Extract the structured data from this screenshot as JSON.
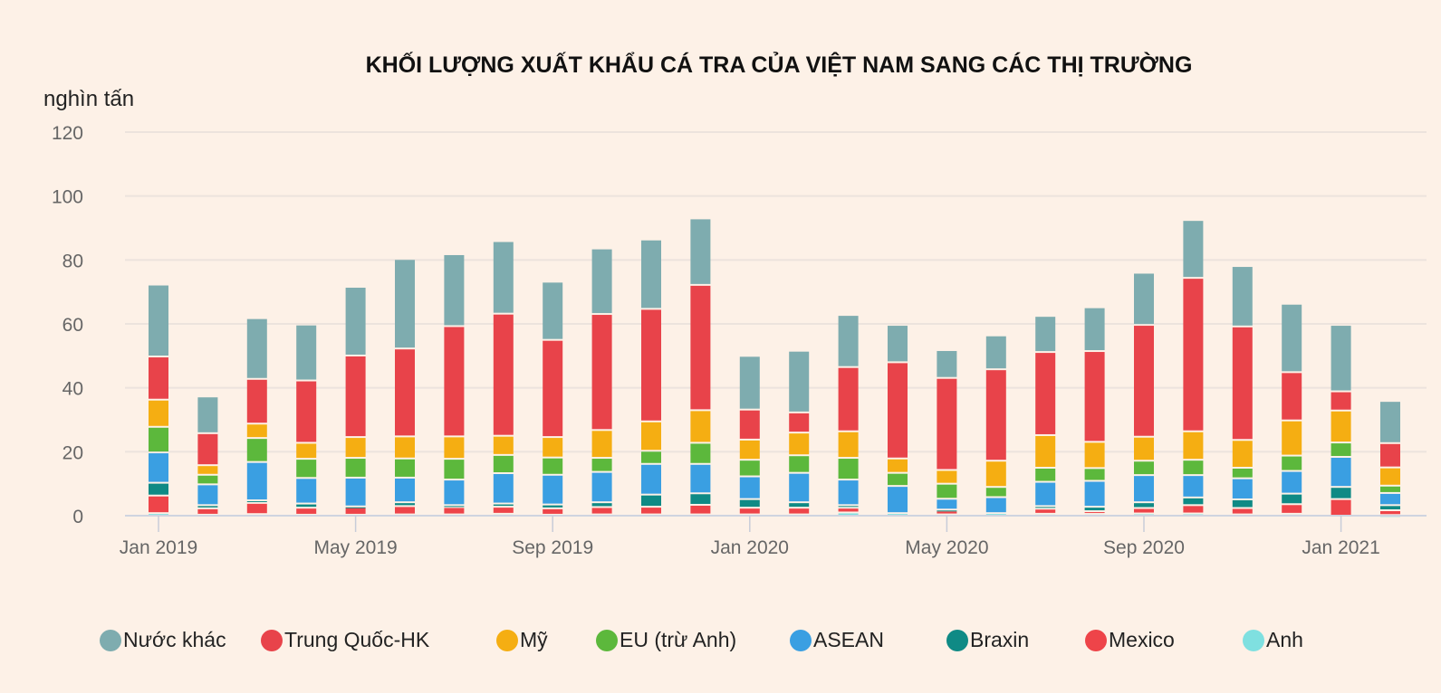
{
  "chart_data": {
    "type": "bar",
    "stacked": true,
    "title": "KHỐI LƯỢNG XUẤT KHẨU CÁ TRA CỦA VIỆT NAM SANG CÁC THỊ TRƯỜNG",
    "ylabel": "nghìn tấn",
    "xlabel": "",
    "ylim": [
      0,
      120
    ],
    "yticks": [
      0,
      20,
      40,
      60,
      80,
      100,
      120
    ],
    "grid": true,
    "legend_position": "bottom",
    "categories": [
      "Jan 2019",
      "Feb 2019",
      "Mar 2019",
      "Apr 2019",
      "May 2019",
      "Jun 2019",
      "Jul 2019",
      "Aug 2019",
      "Sep 2019",
      "Oct 2019",
      "Nov 2019",
      "Dec 2019",
      "Jan 2020",
      "Feb 2020",
      "Mar 2020",
      "Apr 2020",
      "May 2020",
      "Jun 2020",
      "Jul 2020",
      "Aug 2020",
      "Sep 2020",
      "Oct 2020",
      "Nov 2020",
      "Dec 2020",
      "Jan 2021",
      "Feb 2021"
    ],
    "xtick_labels": [
      {
        "index": 0,
        "label": "Jan 2019"
      },
      {
        "index": 4,
        "label": "May 2019"
      },
      {
        "index": 8,
        "label": "Sep 2019"
      },
      {
        "index": 12,
        "label": "Jan 2020"
      },
      {
        "index": 16,
        "label": "May 2020"
      },
      {
        "index": 20,
        "label": "Sep 2020"
      },
      {
        "index": 24,
        "label": "Jan 2021"
      }
    ],
    "series": [
      {
        "name": "Anh",
        "color": "#7fe0e0",
        "values": [
          0.8,
          0.3,
          0.5,
          0.3,
          0.3,
          0.4,
          0.4,
          0.6,
          0.3,
          0.4,
          0.4,
          0.4,
          0.4,
          0.4,
          1.0,
          0.8,
          0.4,
          0.8,
          0.6,
          0.6,
          0.7,
          0.7,
          0.4,
          0.6,
          0.0,
          0.2
        ]
      },
      {
        "name": "Mexico",
        "color": "#ee4449",
        "values": [
          5.5,
          2.0,
          3.5,
          2.2,
          2.4,
          2.6,
          2.3,
          2.2,
          2.0,
          2.3,
          2.4,
          3.0,
          2.1,
          2.1,
          1.5,
          0.0,
          1.2,
          0.0,
          1.6,
          0.8,
          1.7,
          2.6,
          2.0,
          3.0,
          5.2,
          1.5
        ]
      },
      {
        "name": "Braxin",
        "color": "#0f8a85",
        "values": [
          4.0,
          1.0,
          0.8,
          1.3,
          0.2,
          1.2,
          0.6,
          1.0,
          1.2,
          1.5,
          3.8,
          3.6,
          2.7,
          1.7,
          0.8,
          0.0,
          0.3,
          0.0,
          0.8,
          1.4,
          1.8,
          2.4,
          2.7,
          3.3,
          3.8,
          1.6
        ]
      },
      {
        "name": "ASEAN",
        "color": "#3a9fe2",
        "values": [
          9.5,
          6.5,
          12.0,
          8.0,
          9.0,
          7.7,
          8.0,
          9.5,
          9.3,
          9.5,
          9.6,
          9.2,
          7.1,
          9.2,
          8.0,
          8.5,
          3.4,
          5.0,
          7.6,
          8.1,
          8.5,
          7.0,
          6.6,
          7.1,
          9.4,
          3.8
        ]
      },
      {
        "name": "EU (trừ Anh)",
        "color": "#5cb83c",
        "values": [
          8.0,
          3.0,
          7.5,
          6.0,
          6.2,
          6.0,
          6.5,
          5.7,
          5.4,
          4.4,
          4.1,
          6.6,
          5.2,
          5.5,
          6.8,
          4.1,
          4.7,
          3.2,
          4.4,
          4.0,
          4.5,
          4.8,
          3.3,
          4.8,
          4.5,
          2.3
        ]
      },
      {
        "name": "Mỹ",
        "color": "#f5ae12",
        "values": [
          8.5,
          3.0,
          4.5,
          5.0,
          6.5,
          6.9,
          7.0,
          6.0,
          6.4,
          8.7,
          9.2,
          10.2,
          6.3,
          7.1,
          8.3,
          4.5,
          4.3,
          8.2,
          10.2,
          8.2,
          7.5,
          8.9,
          8.7,
          11.0,
          10.0,
          5.7
        ]
      },
      {
        "name": "Trung Quốc-HK",
        "color": "#e8434a",
        "values": [
          13.5,
          10.0,
          14.0,
          19.5,
          25.5,
          27.5,
          34.5,
          38.2,
          30.4,
          36.3,
          35.2,
          39.2,
          9.4,
          6.3,
          20.1,
          30.1,
          28.8,
          28.6,
          26.0,
          28.4,
          35.0,
          48.0,
          35.5,
          15.1,
          6.0,
          7.6
        ]
      },
      {
        "name": "Nước khác",
        "color": "#7eacaf",
        "values": [
          22.5,
          11.5,
          19.0,
          17.5,
          21.5,
          28.0,
          22.5,
          22.7,
          18.2,
          20.5,
          21.7,
          20.8,
          16.8,
          19.3,
          16.3,
          11.7,
          8.7,
          10.6,
          11.3,
          13.7,
          16.3,
          18.1,
          18.9,
          21.4,
          20.8,
          13.2
        ]
      }
    ],
    "legend": [
      {
        "name": "Nước khác",
        "color": "#7eacaf"
      },
      {
        "name": "Trung Quốc-HK",
        "color": "#e8434a"
      },
      {
        "name": "Mỹ",
        "color": "#f5ae12"
      },
      {
        "name": "EU (trừ Anh)",
        "color": "#5cb83c"
      },
      {
        "name": "ASEAN",
        "color": "#3a9fe2"
      },
      {
        "name": "Braxin",
        "color": "#0f8a85"
      },
      {
        "name": "Mexico",
        "color": "#ee4449"
      },
      {
        "name": "Anh",
        "color": "#7fe0e0"
      }
    ]
  }
}
